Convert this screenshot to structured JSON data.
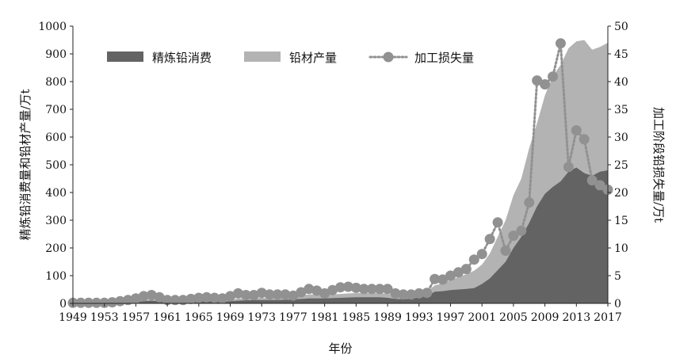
{
  "chart_data": {
    "type": "area",
    "xlabel": "年份",
    "ylabel_left": "精炼铅消费量和铅材产量/万t",
    "ylabel_right": "加工阶段铅损失量/万t",
    "ylim_left": [
      0,
      1000
    ],
    "ylim_right": [
      0,
      50
    ],
    "x_ticks": [
      "1949",
      "1953",
      "1957",
      "1961",
      "1965",
      "1969",
      "1973",
      "1977",
      "1981",
      "1985",
      "1989",
      "1993",
      "1997",
      "2001",
      "2005",
      "2009",
      "2013",
      "2017"
    ],
    "y_ticks_left": [
      "0",
      "100",
      "200",
      "300",
      "400",
      "500",
      "600",
      "700",
      "800",
      "900",
      "1000"
    ],
    "y_ticks_right": [
      "0",
      "5",
      "10",
      "15",
      "20",
      "25",
      "30",
      "35",
      "40",
      "45",
      "50"
    ],
    "legend_position": "top-left",
    "grid": false,
    "x": [
      1949,
      1950,
      1951,
      1952,
      1953,
      1954,
      1955,
      1956,
      1957,
      1958,
      1959,
      1960,
      1961,
      1962,
      1963,
      1964,
      1965,
      1966,
      1967,
      1968,
      1969,
      1970,
      1971,
      1972,
      1973,
      1974,
      1975,
      1976,
      1977,
      1978,
      1979,
      1980,
      1981,
      1982,
      1983,
      1984,
      1985,
      1986,
      1987,
      1988,
      1989,
      1990,
      1991,
      1992,
      1993,
      1994,
      1995,
      1996,
      1997,
      1998,
      1999,
      2000,
      2001,
      2002,
      2003,
      2004,
      2005,
      2006,
      2007,
      2008,
      2009,
      2010,
      2011,
      2012,
      2013,
      2014,
      2015,
      2016,
      2017
    ],
    "series": [
      {
        "name": "精炼铅消费",
        "axis": "left",
        "render": "area",
        "color": "#636363",
        "values": [
          0,
          0,
          1,
          1,
          1,
          2,
          3,
          4,
          6,
          8,
          10,
          7,
          5,
          4,
          5,
          6,
          7,
          8,
          7,
          6,
          8,
          10,
          11,
          12,
          12,
          12,
          12,
          13,
          14,
          16,
          18,
          18,
          18,
          19,
          20,
          21,
          22,
          22,
          22,
          22,
          20,
          16,
          15,
          17,
          22,
          26,
          42,
          44,
          48,
          50,
          52,
          55,
          70,
          90,
          120,
          150,
          200,
          240,
          290,
          350,
          395,
          420,
          440,
          475,
          490,
          470,
          460,
          475,
          480
        ]
      },
      {
        "name": "铅材产量",
        "axis": "left",
        "render": "area",
        "color": "#b3b3b3",
        "values": [
          0,
          0,
          1,
          1,
          2,
          3,
          4,
          6,
          9,
          12,
          14,
          11,
          8,
          7,
          8,
          9,
          10,
          12,
          11,
          10,
          13,
          17,
          19,
          20,
          20,
          19,
          19,
          20,
          23,
          28,
          32,
          32,
          31,
          32,
          34,
          36,
          37,
          37,
          37,
          37,
          35,
          29,
          27,
          31,
          36,
          42,
          65,
          72,
          85,
          95,
          105,
          118,
          140,
          180,
          240,
          300,
          390,
          450,
          560,
          650,
          750,
          820,
          860,
          920,
          945,
          950,
          915,
          925,
          940
        ]
      },
      {
        "name": "加工损失量",
        "axis": "right",
        "render": "dotted-line-markers",
        "color": "#919191",
        "values": [
          0.1,
          0.1,
          0.1,
          0.1,
          0.1,
          0.2,
          0.4,
          0.6,
          0.9,
          1.3,
          1.5,
          1.1,
          0.6,
          0.6,
          0.6,
          0.8,
          1,
          1.1,
          1,
          0.9,
          1.3,
          1.8,
          1.5,
          1.5,
          1.9,
          1.6,
          1.6,
          1.6,
          1.4,
          2,
          2.6,
          2.3,
          1.8,
          2.4,
          2.9,
          3,
          2.8,
          2.6,
          2.6,
          2.6,
          2.6,
          1.8,
          1.6,
          1.6,
          1.8,
          1.9,
          4.4,
          4.3,
          5,
          5.6,
          6.2,
          7.9,
          8.9,
          11.6,
          14.6,
          9.5,
          12.2,
          13.1,
          18.2,
          40.2,
          39.5,
          40.9,
          46.9,
          24.6,
          31.2,
          29.6,
          22.2,
          21.3,
          20.5
        ]
      }
    ]
  }
}
